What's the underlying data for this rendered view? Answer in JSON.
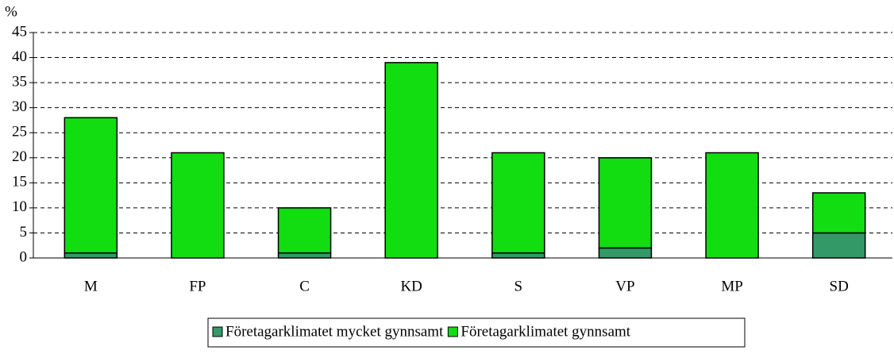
{
  "chart_data": {
    "type": "stacked_bar",
    "y_label": "%",
    "categories": [
      "M",
      "FP",
      "C",
      "KD",
      "S",
      "VP",
      "MP",
      "SD"
    ],
    "series": [
      {
        "name": "Företagarklimatet mycket gynnsamt",
        "color": "#339966",
        "values": [
          1,
          0,
          1,
          0,
          1,
          2,
          0,
          5
        ]
      },
      {
        "name": "Företagarklimatet gynnsamt",
        "color": "#11dd11",
        "values": [
          27,
          21,
          9,
          39,
          20,
          18,
          21,
          8
        ]
      }
    ],
    "ylim": [
      0,
      45
    ],
    "yticks": [
      0,
      5,
      10,
      15,
      20,
      25,
      30,
      35,
      40,
      45
    ],
    "grid": true,
    "legend": "bottom"
  }
}
